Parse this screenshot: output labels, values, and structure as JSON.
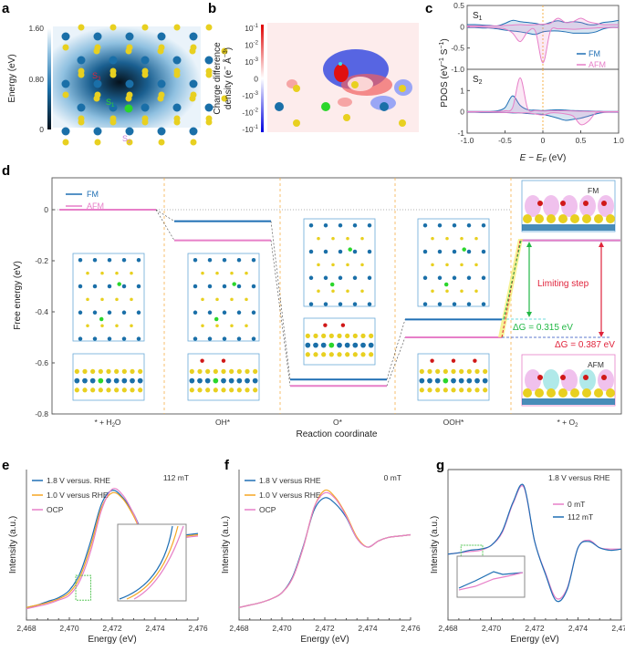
{
  "panel_labels": [
    "a",
    "b",
    "c",
    "d",
    "e",
    "f",
    "g"
  ],
  "colors": {
    "fm": "#1f6fb4",
    "afm": "#e77fc8",
    "yellow": "#e8d020",
    "s_blue": "#1a6fa8",
    "green": "#2bd62b",
    "orange_divider": "#f5b04a",
    "limiting_red": "#e0233b",
    "dg_green": "#22b845"
  },
  "chart_data": [
    {
      "panel": "a",
      "type": "heatmap",
      "colorbar": {
        "label": "Energy (eV)",
        "ticks": [
          "1.60",
          "0.80",
          "0"
        ],
        "range": [
          0,
          1.6
        ]
      },
      "site_labels": [
        {
          "text": "S",
          "sub": "3",
          "color": "#e0233b"
        },
        {
          "text": "S",
          "sub": "1",
          "color": "#2bd62b"
        },
        {
          "text": "S",
          "sub": "2",
          "color": "#c77fd8"
        }
      ]
    },
    {
      "panel": "b",
      "type": "heatmap",
      "colorbar": {
        "label_line1": "Charge difference",
        "label_line2": "density (e",
        "label_sup": "−",
        "label_mid": " Å",
        "label_sup2": "−3",
        "label_end": ")",
        "ticks": [
          {
            "base": "10",
            "exp": "-1"
          },
          {
            "base": "10",
            "exp": "-2"
          },
          {
            "base": "10",
            "exp": "-3"
          },
          {
            "base": "0",
            "exp": ""
          },
          {
            "base": "-10",
            "exp": "-3"
          },
          {
            "base": "-10",
            "exp": "-2"
          },
          {
            "base": "-10",
            "exp": "-1"
          }
        ]
      }
    },
    {
      "panel": "c",
      "type": "area",
      "ylabel": {
        "pre": "PDOS (eV",
        "sup1": "−1",
        "mid": " S",
        "sup2": "−1",
        "post": ")"
      },
      "xlabel": {
        "pre": "E − E",
        "sub": "F",
        "post": " (eV)"
      },
      "xlim": [
        -1,
        1
      ],
      "xticks": [
        "-1.0",
        "-0.5",
        "0",
        "0.5",
        "1.0"
      ],
      "legend": [
        "FM",
        "AFM"
      ],
      "legend_position": "right",
      "x": [
        -1,
        -0.9,
        -0.8,
        -0.7,
        -0.6,
        -0.5,
        -0.4,
        -0.3,
        -0.2,
        -0.1,
        0,
        0.1,
        0.2,
        0.3,
        0.4,
        0.5,
        0.6,
        0.7,
        0.8,
        0.9,
        1.0
      ],
      "subplots": [
        {
          "name": "S",
          "sub": "1",
          "ylim": [
            -1,
            0.5
          ],
          "yticks": [
            "0.5",
            "0",
            "-0.5",
            "-1.0"
          ],
          "ytick_values": [
            0.5,
            0,
            -0.5,
            -1
          ],
          "series": [
            {
              "name": "FM",
              "spin": "up",
              "values": [
                0.05,
                0.05,
                0.04,
                0.03,
                0.02,
                0.08,
                0.15,
                0.12,
                0.1,
                0.08,
                0.05,
                0.1,
                0.14,
                0.1,
                0.12,
                0.1,
                0.05,
                0.05,
                0.1,
                0.12,
                0.15
              ]
            },
            {
              "name": "FM",
              "spin": "down",
              "values": [
                -0.02,
                -0.02,
                -0.03,
                -0.03,
                -0.05,
                -0.08,
                -0.1,
                -0.12,
                -0.15,
                -0.18,
                -0.12,
                -0.1,
                -0.1,
                -0.12,
                -0.15,
                -0.15,
                -0.15,
                -0.12,
                -0.05,
                -0.02,
                -0.02
              ]
            },
            {
              "name": "AFM",
              "spin": "up",
              "values": [
                0.02,
                0.02,
                0.02,
                0.02,
                0.02,
                0.03,
                0.04,
                0.05,
                0.04,
                0.05,
                0.06,
                0.08,
                0.2,
                0.1,
                0.12,
                0.2,
                0.12,
                0.08,
                0.05,
                0.05,
                0.05
              ]
            },
            {
              "name": "AFM",
              "spin": "down",
              "values": [
                -0.01,
                -0.01,
                -0.01,
                -0.02,
                -0.03,
                -0.05,
                -0.15,
                -0.35,
                -0.12,
                -0.1,
                -0.85,
                -0.1,
                -0.05,
                -0.05,
                -0.06,
                -0.05,
                -0.04,
                -0.03,
                -0.02,
                -0.02,
                -0.02
              ]
            }
          ]
        },
        {
          "name": "S",
          "sub": "2",
          "ylim": [
            -1,
            2
          ],
          "yticks": [
            "1",
            "0",
            "-1"
          ],
          "ytick_values": [
            1,
            0,
            -1
          ],
          "series": [
            {
              "name": "FM",
              "spin": "up",
              "values": [
                0.02,
                0.02,
                0.02,
                0.02,
                0.05,
                0.2,
                0.75,
                0.3,
                0.1,
                0.08,
                0.06,
                0.08,
                0.1,
                0.08,
                0.06,
                0.05,
                0.04,
                0.03,
                0.02,
                0.02,
                0.02
              ]
            },
            {
              "name": "FM",
              "spin": "down",
              "values": [
                -0.02,
                -0.02,
                -0.03,
                -0.03,
                -0.03,
                -0.03,
                -0.05,
                -0.05,
                -0.08,
                -0.1,
                -0.12,
                -0.2,
                -0.3,
                -0.4,
                -0.35,
                -0.3,
                -0.2,
                -0.1,
                -0.03,
                -0.02,
                -0.02
              ]
            },
            {
              "name": "AFM",
              "spin": "up",
              "values": [
                0.01,
                0.01,
                0.01,
                0.01,
                0.02,
                0.05,
                0.2,
                1.6,
                0.15,
                0.06,
                0.04,
                0.05,
                0.05,
                0.05,
                0.04,
                0.03,
                0.02,
                0.02,
                0.01,
                0.01,
                0.01
              ]
            },
            {
              "name": "AFM",
              "spin": "down",
              "values": [
                -0.01,
                -0.01,
                -0.01,
                -0.01,
                -0.02,
                -0.03,
                -0.03,
                -0.05,
                -0.05,
                -0.1,
                -0.15,
                -0.05,
                -0.05,
                -0.1,
                -0.2,
                -0.6,
                -0.45,
                -0.05,
                -0.02,
                -0.01,
                -0.01
              ]
            }
          ]
        }
      ]
    },
    {
      "panel": "d",
      "type": "line",
      "ylabel": "Free energy (eV)",
      "xlabel": "Reaction coordinate",
      "ylim": [
        -0.8,
        0.15
      ],
      "yticks": [
        "0",
        "-0.2",
        "-0.4",
        "-0.6",
        "-0.8"
      ],
      "ytick_values": [
        0,
        -0.2,
        -0.4,
        -0.6,
        -0.8
      ],
      "categories": [
        {
          "pre": "* + H",
          "sub": "2",
          "post": "O"
        },
        {
          "pre": "OH*",
          "sub": "",
          "post": ""
        },
        {
          "pre": "O*",
          "sub": "",
          "post": ""
        },
        {
          "pre": "OOH*",
          "sub": "",
          "post": ""
        },
        {
          "pre": "* + O",
          "sub": "2",
          "post": ""
        }
      ],
      "legend": [
        "FM",
        "AFM"
      ],
      "legend_position": "top-left",
      "series": [
        {
          "name": "FM",
          "values": [
            0,
            -0.045,
            -0.665,
            -0.43,
            -0.12
          ]
        },
        {
          "name": "AFM",
          "values": [
            0,
            -0.12,
            -0.69,
            -0.5,
            -0.12
          ]
        }
      ],
      "annotations": {
        "limiting_step": "Limiting step",
        "dg_fm": "ΔG = 0.315 eV",
        "dg_afm": "ΔG = 0.387 eV",
        "inset_fm": "FM",
        "inset_afm": "AFM"
      }
    },
    {
      "panel": "e",
      "type": "line",
      "xlabel": "Energy (eV)",
      "ylabel": "Intensity (a.u.)",
      "xlim": [
        2468,
        2476
      ],
      "xticks": [
        "2,468",
        "2,470",
        "2,472",
        "2,474",
        "2,476"
      ],
      "annotation": "112 mT",
      "legend_position": "top-left",
      "x": [
        2468,
        2468.5,
        2469,
        2469.5,
        2470,
        2470.5,
        2471,
        2471.5,
        2472,
        2472.5,
        2473,
        2473.5,
        2474,
        2474.5,
        2475,
        2475.5,
        2476
      ],
      "series": [
        {
          "name": "1.8 V versus. RHE",
          "values": [
            0.04,
            0.06,
            0.09,
            0.12,
            0.18,
            0.32,
            0.58,
            0.88,
            0.99,
            0.93,
            0.8,
            0.62,
            0.54,
            0.59,
            0.62,
            0.63,
            0.64
          ]
        },
        {
          "name": "1.0 V versus RHE",
          "values": [
            0.04,
            0.06,
            0.08,
            0.11,
            0.16,
            0.29,
            0.54,
            0.85,
            0.97,
            0.92,
            0.78,
            0.6,
            0.52,
            0.57,
            0.61,
            0.62,
            0.63
          ]
        },
        {
          "name": "OCP",
          "values": [
            0.03,
            0.05,
            0.07,
            0.1,
            0.14,
            0.26,
            0.5,
            0.83,
            1.0,
            0.95,
            0.8,
            0.6,
            0.5,
            0.55,
            0.6,
            0.61,
            0.62
          ]
        }
      ]
    },
    {
      "panel": "f",
      "type": "line",
      "xlabel": "Energy (eV)",
      "ylabel": "Intensity (a.u.)",
      "xlim": [
        2468,
        2476
      ],
      "xticks": [
        "2,468",
        "2,470",
        "2,472",
        "2,474",
        "2,476"
      ],
      "annotation": "0 mT",
      "legend_position": "top-left",
      "x": [
        2468,
        2468.5,
        2469,
        2469.5,
        2470,
        2470.5,
        2471,
        2471.5,
        2472,
        2472.5,
        2473,
        2473.5,
        2474,
        2474.5,
        2475,
        2475.5,
        2476
      ],
      "series": [
        {
          "name": "1.8 V versus RHE",
          "values": [
            0.04,
            0.06,
            0.08,
            0.11,
            0.16,
            0.29,
            0.54,
            0.83,
            0.93,
            0.88,
            0.77,
            0.6,
            0.53,
            0.58,
            0.61,
            0.62,
            0.63
          ]
        },
        {
          "name": "1.0 V versus RHE",
          "values": [
            0.04,
            0.06,
            0.08,
            0.11,
            0.16,
            0.28,
            0.53,
            0.85,
            0.99,
            0.93,
            0.79,
            0.61,
            0.53,
            0.58,
            0.61,
            0.62,
            0.63
          ]
        },
        {
          "name": "OCP",
          "values": [
            0.04,
            0.06,
            0.08,
            0.11,
            0.16,
            0.28,
            0.53,
            0.85,
            0.97,
            0.92,
            0.78,
            0.6,
            0.53,
            0.58,
            0.61,
            0.62,
            0.63
          ]
        }
      ]
    },
    {
      "panel": "g",
      "type": "line",
      "xlabel": "Energy (eV)",
      "ylabel": "Intensity (a.u.)",
      "xlim": [
        2468,
        2476
      ],
      "xticks": [
        "2,468",
        "2,470",
        "2,472",
        "2,474",
        "2,476"
      ],
      "annotation": "1.8 V versus RHE",
      "legend_position": "right",
      "x": [
        2468,
        2468.5,
        2469,
        2469.5,
        2470,
        2470.5,
        2471,
        2471.5,
        2472,
        2472.5,
        2473,
        2473.5,
        2474,
        2474.5,
        2475,
        2475.5,
        2476
      ],
      "series": [
        {
          "name": "0 mT",
          "values": [
            0.45,
            0.46,
            0.47,
            0.48,
            0.52,
            0.62,
            0.85,
            0.98,
            0.55,
            0.3,
            0.1,
            0.18,
            0.5,
            0.56,
            0.5,
            0.49,
            0.49
          ]
        },
        {
          "name": "112 mT",
          "values": [
            0.45,
            0.46,
            0.48,
            0.49,
            0.52,
            0.63,
            0.86,
            0.99,
            0.55,
            0.29,
            0.08,
            0.17,
            0.5,
            0.55,
            0.5,
            0.48,
            0.49
          ]
        }
      ]
    }
  ]
}
